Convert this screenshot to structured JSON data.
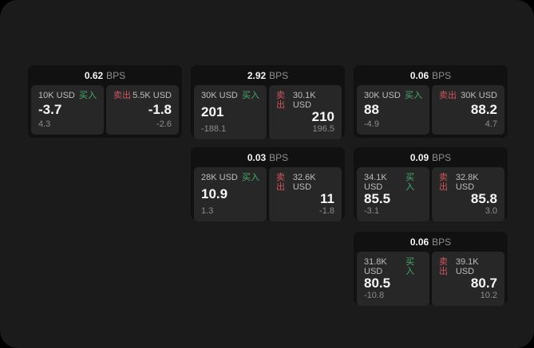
{
  "labels": {
    "buy": "买入",
    "sell": "卖出",
    "bps": "BPS"
  },
  "colors": {
    "buy": "#48ab6b",
    "sell": "#cf5560",
    "screen_bg": "#1b1b1b",
    "card_bg": "#111111",
    "panel_bg": "#272727"
  },
  "cards": [
    {
      "bps": "0.62",
      "buy": {
        "size": "10K USD",
        "value": "-3.7",
        "delta": "4.3"
      },
      "sell": {
        "size": "5.5K USD",
        "value": "-1.8",
        "delta": "-2.6"
      }
    },
    {
      "bps": "2.92",
      "buy": {
        "size": "30K USD",
        "value": "201",
        "delta": "-188.1"
      },
      "sell": {
        "size": "30.1K USD",
        "value": "210",
        "delta": "196.5"
      }
    },
    {
      "bps": "0.06",
      "buy": {
        "size": "30K USD",
        "value": "88",
        "delta": "-4.9"
      },
      "sell": {
        "size": "30K USD",
        "value": "88.2",
        "delta": "4.7"
      }
    },
    {
      "bps": "0.03",
      "buy": {
        "size": "28K USD",
        "value": "10.9",
        "delta": "1.3"
      },
      "sell": {
        "size": "32.6K USD",
        "value": "11",
        "delta": "-1.8"
      }
    },
    {
      "bps": "0.09",
      "buy": {
        "size": "34.1K USD",
        "value": "85.5",
        "delta": "-3.1"
      },
      "sell": {
        "size": "32.8K USD",
        "value": "85.8",
        "delta": "3.0"
      }
    },
    {
      "bps": "0.06",
      "buy": {
        "size": "31.8K USD",
        "value": "80.5",
        "delta": "-10.8"
      },
      "sell": {
        "size": "39.1K USD",
        "value": "80.7",
        "delta": "10.2"
      }
    }
  ]
}
